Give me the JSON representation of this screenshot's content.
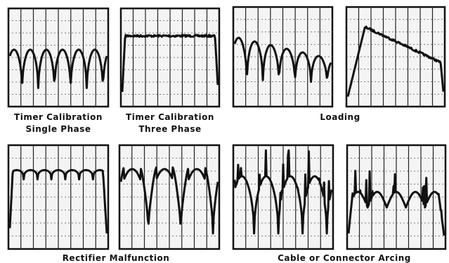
{
  "captions": [
    [
      "Timer Calibration",
      "Single Phase"
    ],
    [
      "Timer Calibration",
      "Three Phase"
    ],
    [
      "Loading"
    ],
    [
      "Rectifier Malfunction"
    ],
    [
      "Cable or Connector Arcing"
    ]
  ]
}
